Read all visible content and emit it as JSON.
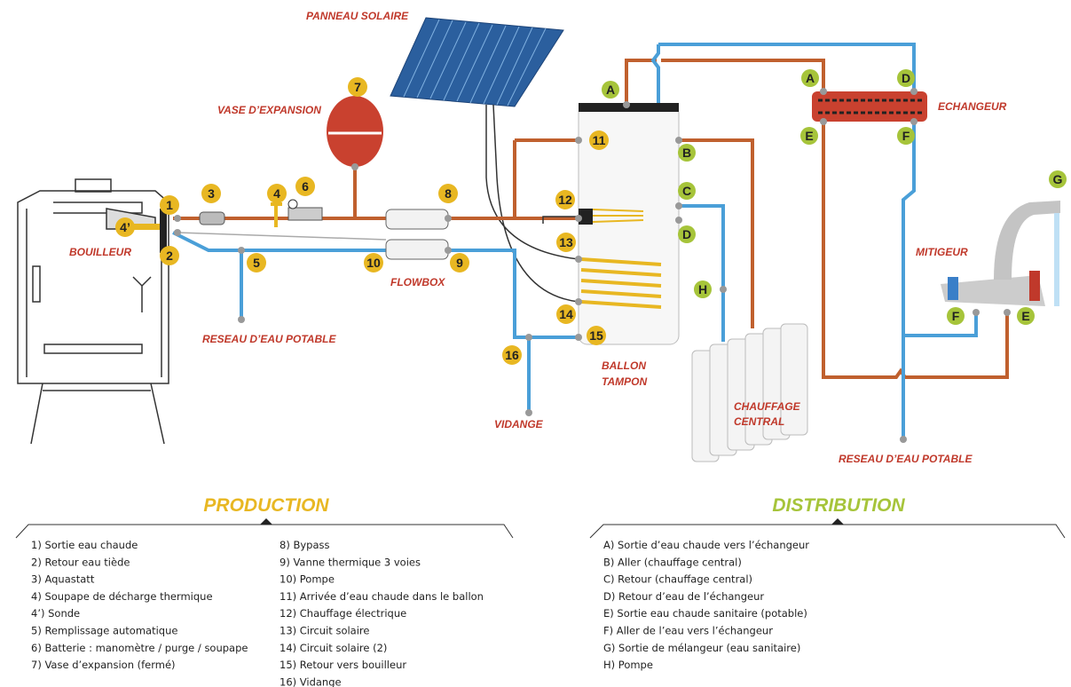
{
  "diagram": {
    "labels": [
      "PANNEAU SOLAIRE",
      "VASE D’EXPANSION",
      "BOUILLEUR",
      "RESEAU D’EAU POTABLE",
      "FLOWBOX",
      "VIDANGE",
      "BALLON",
      "TAMPON",
      "CHAUFFAGE",
      "CENTRAL",
      "ECHANGEUR",
      "MITIGEUR",
      "RESEAU D’EAU POTABLE"
    ],
    "number_markers": [
      "1",
      "2",
      "3",
      "4",
      "4’",
      "5",
      "6",
      "7",
      "8",
      "9",
      "10",
      "11",
      "12",
      "13",
      "14",
      "15",
      "16"
    ],
    "letter_markers": [
      "A",
      "A",
      "D",
      "E",
      "F",
      "B",
      "C",
      "D",
      "H",
      "G",
      "F",
      "E"
    ]
  },
  "production": {
    "title": "PRODUCTION",
    "items": [
      "1) Sortie eau chaude",
      "2) Retour eau tiède",
      "3) Aquastatt",
      "4) Soupape de décharge thermique",
      "4’) Sonde",
      "5) Remplissage automatique",
      "6) Batterie : manomètre / purge / soupape",
      "7) Vase d’expansion (fermé)",
      "8) Bypass",
      "9) Vanne thermique 3 voies",
      "10) Pompe",
      "11) Arrivée d’eau chaude dans le ballon",
      "12) Chauffage électrique",
      "13) Circuit solaire",
      "14) Circuit solaire (2)",
      "15) Retour vers bouilleur",
      "16) Vidange"
    ]
  },
  "distribution": {
    "title": "DISTRIBUTION",
    "items": [
      "A) Sortie d’eau chaude vers l’échangeur",
      "B) Aller (chauffage central)",
      "C) Retour (chauffage central)",
      "D) Retour d’eau de l’échangeur",
      "E) Sortie eau chaude sanitaire (potable)",
      "F) Aller de l’eau vers l’échangeur",
      "G) Sortie de mélangeur (eau sanitaire)",
      "H) Pompe"
    ]
  }
}
